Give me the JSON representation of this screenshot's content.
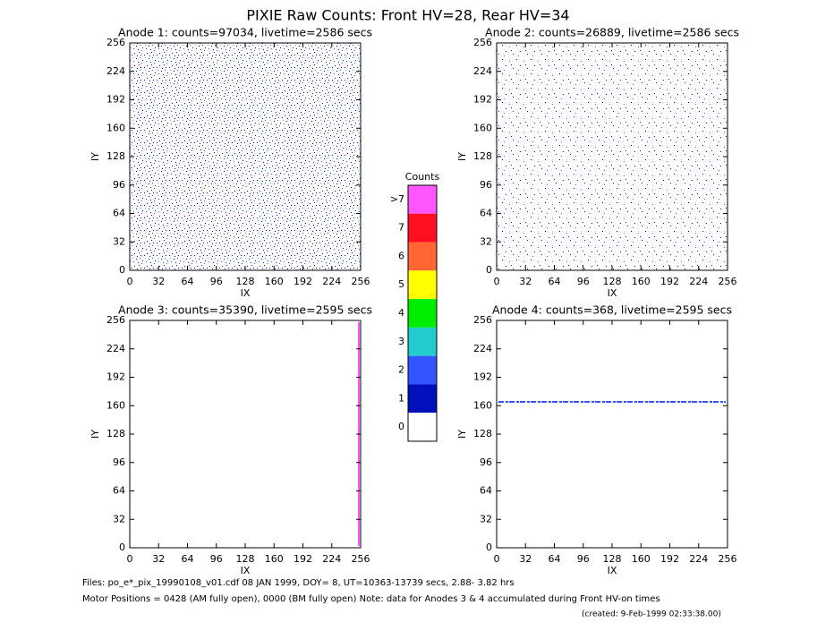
{
  "title": "PIXIE Raw Counts:  Front HV=28, Rear HV=34",
  "chart_data": [
    {
      "type": "heatmap",
      "title": "Anode 1: counts=97034, livetime=2586 secs",
      "xlabel": "IX",
      "ylabel": "IY",
      "xlim": [
        0,
        256
      ],
      "ylim": [
        0,
        256
      ],
      "xticks": [
        0,
        32,
        64,
        96,
        128,
        160,
        192,
        224,
        256
      ],
      "yticks": [
        0,
        32,
        64,
        96,
        128,
        160,
        192,
        224,
        256
      ]
    },
    {
      "type": "heatmap",
      "title": "Anode 2: counts=26889, livetime=2586 secs",
      "xlabel": "IX",
      "ylabel": "IY",
      "xlim": [
        0,
        256
      ],
      "ylim": [
        0,
        256
      ],
      "xticks": [
        0,
        32,
        64,
        96,
        128,
        160,
        192,
        224,
        256
      ],
      "yticks": [
        0,
        32,
        64,
        96,
        128,
        160,
        192,
        224,
        256
      ]
    },
    {
      "type": "heatmap",
      "title": "Anode 3: counts=35390, livetime=2595 secs",
      "xlabel": "IX",
      "ylabel": "IY",
      "xlim": [
        0,
        256
      ],
      "ylim": [
        0,
        256
      ],
      "xticks": [
        0,
        32,
        64,
        96,
        128,
        160,
        192,
        224,
        256
      ],
      "yticks": [
        0,
        32,
        64,
        96,
        128,
        160,
        192,
        224,
        256
      ]
    },
    {
      "type": "heatmap",
      "title": "Anode 4: counts=368, livetime=2595 secs",
      "xlabel": "IX",
      "ylabel": "IY",
      "xlim": [
        0,
        256
      ],
      "ylim": [
        0,
        256
      ],
      "xticks": [
        0,
        32,
        64,
        96,
        128,
        160,
        192,
        224,
        256
      ],
      "yticks": [
        0,
        32,
        64,
        96,
        128,
        160,
        192,
        224,
        256
      ]
    }
  ],
  "colorbar": {
    "title": "Counts",
    "labels": [
      ">7",
      "7",
      "6",
      "5",
      "4",
      "3",
      "2",
      "1",
      "0"
    ],
    "colors": [
      "#ff55ff",
      "#ff1020",
      "#ff6633",
      "#ffff00",
      "#00ee00",
      "#22cccc",
      "#3355ff",
      "#0011bb",
      "#ffffff"
    ]
  },
  "footer": [
    "Files: po_e*_pix_19990108_v01.cdf    08 JAN 1999, DOY=  8, UT=10363-13739 secs,  2.88- 3.82 hrs",
    "Motor Positions = 0428 (AM fully open), 0000 (BM fully open)    Note: data for Anodes 3 & 4 accumulated during Front HV-on times",
    "(created:  9-Feb-1999 02:33:38.00)"
  ]
}
